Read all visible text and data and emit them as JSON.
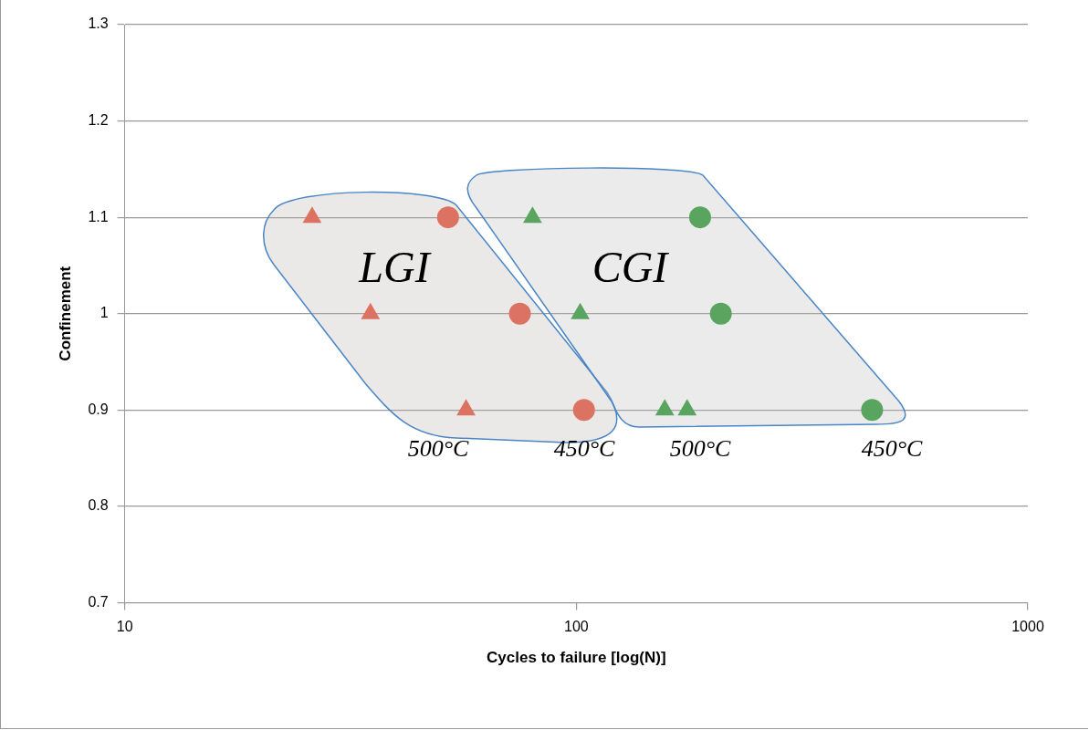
{
  "chart_data": {
    "type": "scatter",
    "xlabel": "Cycles to failure [log(N)]",
    "ylabel": "Confinement",
    "log": "x",
    "grid": "y",
    "legend": false,
    "xlim": [
      10,
      1000
    ],
    "xticks": [
      10,
      100,
      1000
    ],
    "ylim": [
      0.7,
      1.3
    ],
    "yticks": [
      {
        "value": 0.7,
        "label": "0.7"
      },
      {
        "value": 0.8,
        "label": "0.8"
      },
      {
        "value": 0.9,
        "label": "0.9"
      },
      {
        "value": 1,
        "label": "1"
      },
      {
        "value": 1.1,
        "label": "1.1"
      },
      {
        "value": 1.2,
        "label": "1.2"
      },
      {
        "value": 1.3,
        "label": "1.3"
      }
    ],
    "series": [
      {
        "color": "#e9573f",
        "marker": "triangle",
        "x": [
          26,
          35,
          57
        ],
        "values": [
          1.1,
          1.0,
          0.9
        ]
      },
      {
        "color": "#e9573f",
        "marker": "circle",
        "x": [
          52,
          75,
          104
        ],
        "values": [
          1.1,
          1.0,
          0.9
        ]
      },
      {
        "color": "#2f9a35",
        "marker": "triangle",
        "x": [
          80,
          102,
          157,
          176
        ],
        "values": [
          1.1,
          1.0,
          0.9,
          0.9
        ]
      },
      {
        "color": "#2f9a35",
        "marker": "circle",
        "x": [
          188,
          209,
          452
        ],
        "values": [
          1.1,
          1.0,
          0.9
        ]
      }
    ],
    "annotations": [
      "LGI",
      "CGI",
      "500°C",
      "450°C",
      "500°C",
      "450°C"
    ]
  }
}
